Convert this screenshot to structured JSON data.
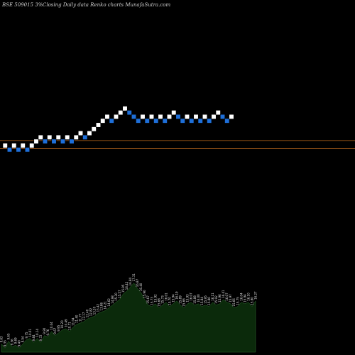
{
  "header": {
    "ticker": "BSE 509015 3%",
    "description": "Closing Daily data  Renko  charts MunafaSutra.com"
  },
  "colors": {
    "background": "#000000",
    "up_brick": "#ffffff",
    "down_brick": "#1e6fd9",
    "reference_line": "#b5651d",
    "volume_fill": "#0b2a0b",
    "volume_edge": "#2e6b2e",
    "label_text": "#e6e6e6"
  },
  "chart_data": {
    "type": "renko",
    "title": "BSE 509015 3%",
    "subtitle": "Closing Daily data  Renko  charts MunafaSutra.com",
    "brick_size_pct": 3,
    "reference_lines": [
      12.0,
      10.0
    ],
    "bricks": [
      {
        "dir": "up",
        "level": 10
      },
      {
        "dir": "down",
        "level": 9
      },
      {
        "dir": "up",
        "level": 10
      },
      {
        "dir": "down",
        "level": 9
      },
      {
        "dir": "up",
        "level": 10
      },
      {
        "dir": "down",
        "level": 9
      },
      {
        "dir": "up",
        "level": 10
      },
      {
        "dir": "up",
        "level": 11
      },
      {
        "dir": "up",
        "level": 12
      },
      {
        "dir": "down",
        "level": 11
      },
      {
        "dir": "up",
        "level": 12
      },
      {
        "dir": "down",
        "level": 11
      },
      {
        "dir": "up",
        "level": 12
      },
      {
        "dir": "down",
        "level": 11
      },
      {
        "dir": "up",
        "level": 12
      },
      {
        "dir": "down",
        "level": 11
      },
      {
        "dir": "up",
        "level": 12
      },
      {
        "dir": "up",
        "level": 13
      },
      {
        "dir": "down",
        "level": 12
      },
      {
        "dir": "up",
        "level": 13
      },
      {
        "dir": "up",
        "level": 14
      },
      {
        "dir": "up",
        "level": 15
      },
      {
        "dir": "up",
        "level": 16
      },
      {
        "dir": "up",
        "level": 17
      },
      {
        "dir": "down",
        "level": 16
      },
      {
        "dir": "up",
        "level": 17
      },
      {
        "dir": "up",
        "level": 18
      },
      {
        "dir": "up",
        "level": 19
      },
      {
        "dir": "down",
        "level": 18
      },
      {
        "dir": "down",
        "level": 17
      },
      {
        "dir": "down",
        "level": 16
      },
      {
        "dir": "up",
        "level": 17
      },
      {
        "dir": "down",
        "level": 16
      },
      {
        "dir": "up",
        "level": 17
      },
      {
        "dir": "down",
        "level": 16
      },
      {
        "dir": "up",
        "level": 17
      },
      {
        "dir": "down",
        "level": 16
      },
      {
        "dir": "up",
        "level": 17
      },
      {
        "dir": "up",
        "level": 18
      },
      {
        "dir": "down",
        "level": 17
      },
      {
        "dir": "down",
        "level": 16
      },
      {
        "dir": "up",
        "level": 17
      },
      {
        "dir": "down",
        "level": 16
      },
      {
        "dir": "up",
        "level": 17
      },
      {
        "dir": "down",
        "level": 16
      },
      {
        "dir": "up",
        "level": 17
      },
      {
        "dir": "down",
        "level": 16
      },
      {
        "dir": "up",
        "level": 17
      },
      {
        "dir": "up",
        "level": 18
      },
      {
        "dir": "down",
        "level": 17
      },
      {
        "dir": "down",
        "level": 16
      },
      {
        "dir": "up",
        "level": 17
      }
    ],
    "volume_labels": [
      "9.63",
      "9.35",
      "9.65",
      "9.36",
      "9.69",
      "9.40",
      "9.54",
      "9.75",
      "10.01",
      "9.84",
      "10.14",
      "9.72",
      "9.90",
      "9.76",
      "10.04",
      "9.67",
      "9.95",
      "10.20",
      "10.49",
      "10.71",
      "11.04",
      "11.40",
      "11.77",
      "12.17",
      "12.40",
      "12.82",
      "13.20",
      "13.42",
      "13.86",
      "14.21",
      "14.62",
      "14.98",
      "15.30",
      "15.57",
      "15.95",
      "16.42",
      "16.84",
      "17.31",
      "16.87",
      "16.40",
      "15.90",
      "15.67",
      "15.73",
      "15.92",
      "15.68",
      "15.73",
      "16.01",
      "15.70",
      "15.94",
      "16.19",
      "15.89",
      "15.66",
      "15.93",
      "16.07",
      "15.88",
      "16.00",
      "15.84",
      "15.95",
      "15.86",
      "16.11",
      "15.92",
      "15.96",
      "16.41",
      "16.07",
      "15.97",
      "15.66",
      "15.75",
      "16.04",
      "15.94",
      "16.10",
      "15.80",
      "16.27"
    ],
    "volume_values": [
      3,
      1.5,
      4,
      2,
      2.5,
      1.5,
      3,
      4.5,
      5,
      3.5,
      5,
      3.5,
      6,
      5.5,
      7.5,
      6,
      7,
      8,
      8.5,
      7.5,
      9,
      10,
      10.5,
      11,
      12,
      12.5,
      13,
      14,
      14.5,
      15,
      16,
      17,
      18,
      19,
      21,
      22,
      23.5,
      25,
      23,
      21.5,
      19,
      17,
      16.5,
      17.5,
      16,
      17,
      18,
      16.5,
      17.5,
      18.5,
      17,
      16,
      17.5,
      18,
      17,
      17.5,
      16.5,
      17,
      16.5,
      18,
      17,
      17.5,
      19,
      18,
      17.5,
      16,
      16.5,
      18,
      17.5,
      18,
      16.5,
      18.5
    ]
  }
}
